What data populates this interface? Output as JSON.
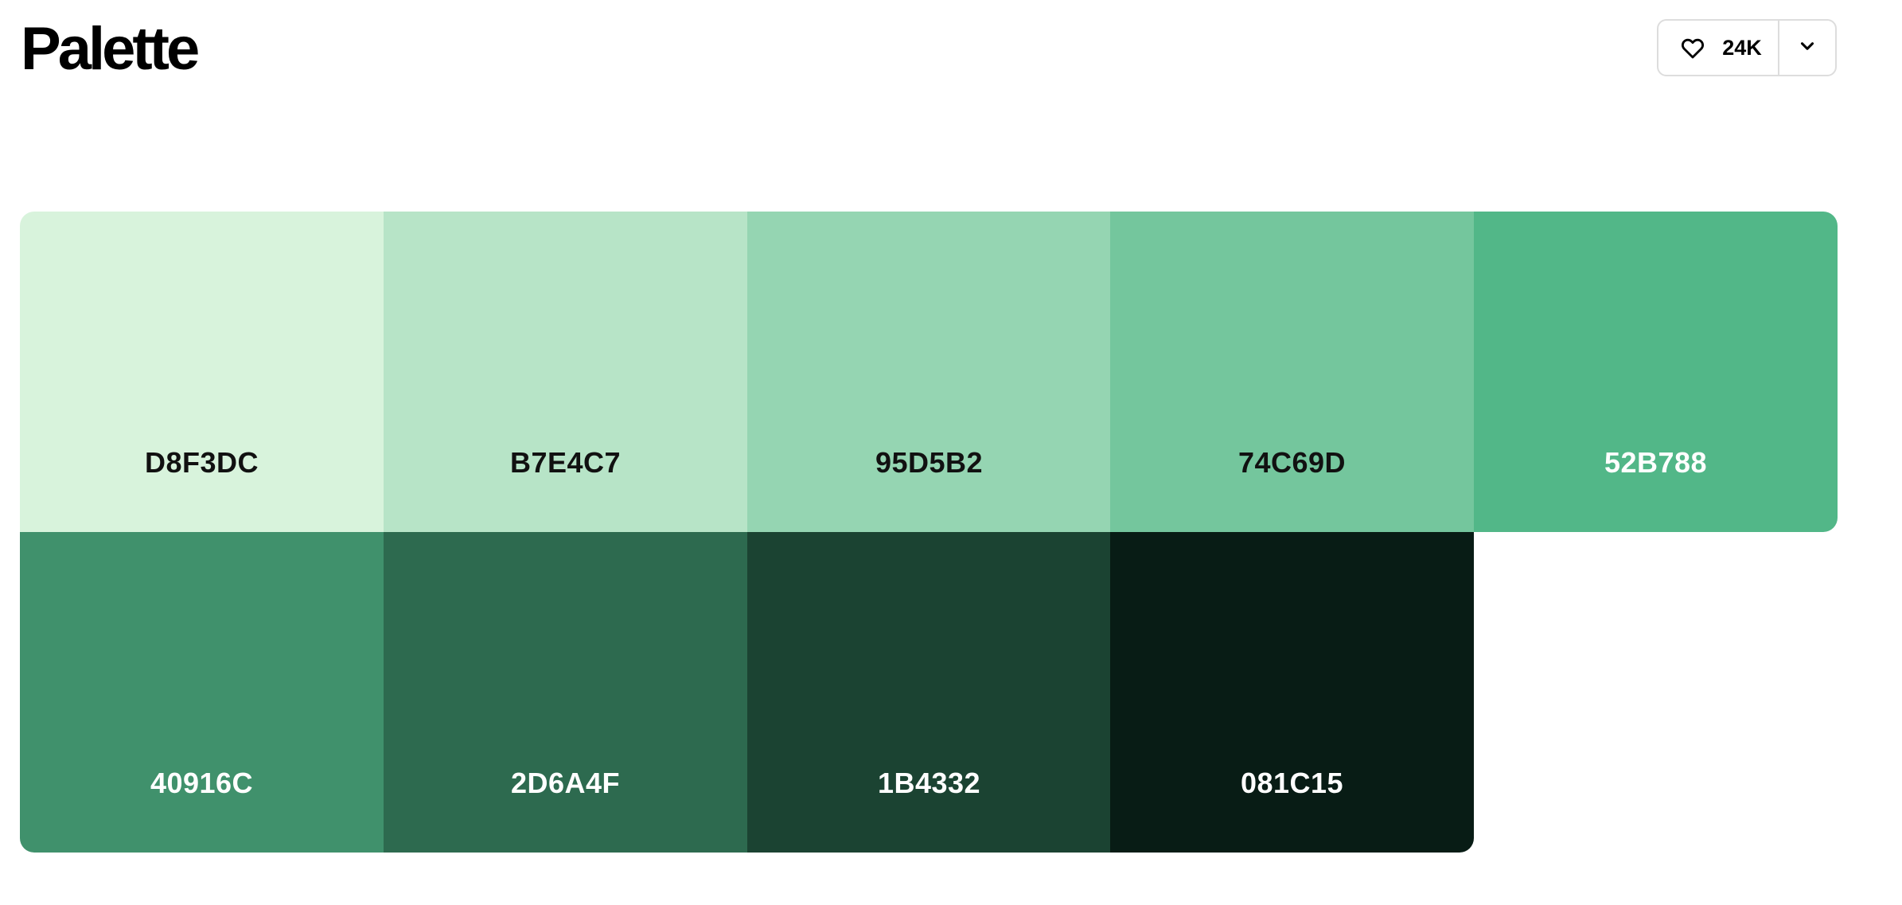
{
  "header": {
    "title": "Palette",
    "like_count": "24K",
    "like_icon": "heart-outline",
    "menu_icon": "chevron-down"
  },
  "palette": {
    "colors": [
      {
        "hex": "D8F3DC",
        "color": "#D8F3DC",
        "text_color": "#111111"
      },
      {
        "hex": "B7E4C7",
        "color": "#B7E4C7",
        "text_color": "#111111"
      },
      {
        "hex": "95D5B2",
        "color": "#95D5B2",
        "text_color": "#111111"
      },
      {
        "hex": "74C69D",
        "color": "#74C69D",
        "text_color": "#111111"
      },
      {
        "hex": "52B788",
        "color": "#52B788",
        "text_color": "#ffffff"
      },
      {
        "hex": "40916C",
        "color": "#40916C",
        "text_color": "#ffffff"
      },
      {
        "hex": "2D6A4F",
        "color": "#2D6A4F",
        "text_color": "#ffffff"
      },
      {
        "hex": "1B4332",
        "color": "#1B4332",
        "text_color": "#ffffff"
      },
      {
        "hex": "081C15",
        "color": "#081C15",
        "text_color": "#ffffff"
      }
    ]
  }
}
